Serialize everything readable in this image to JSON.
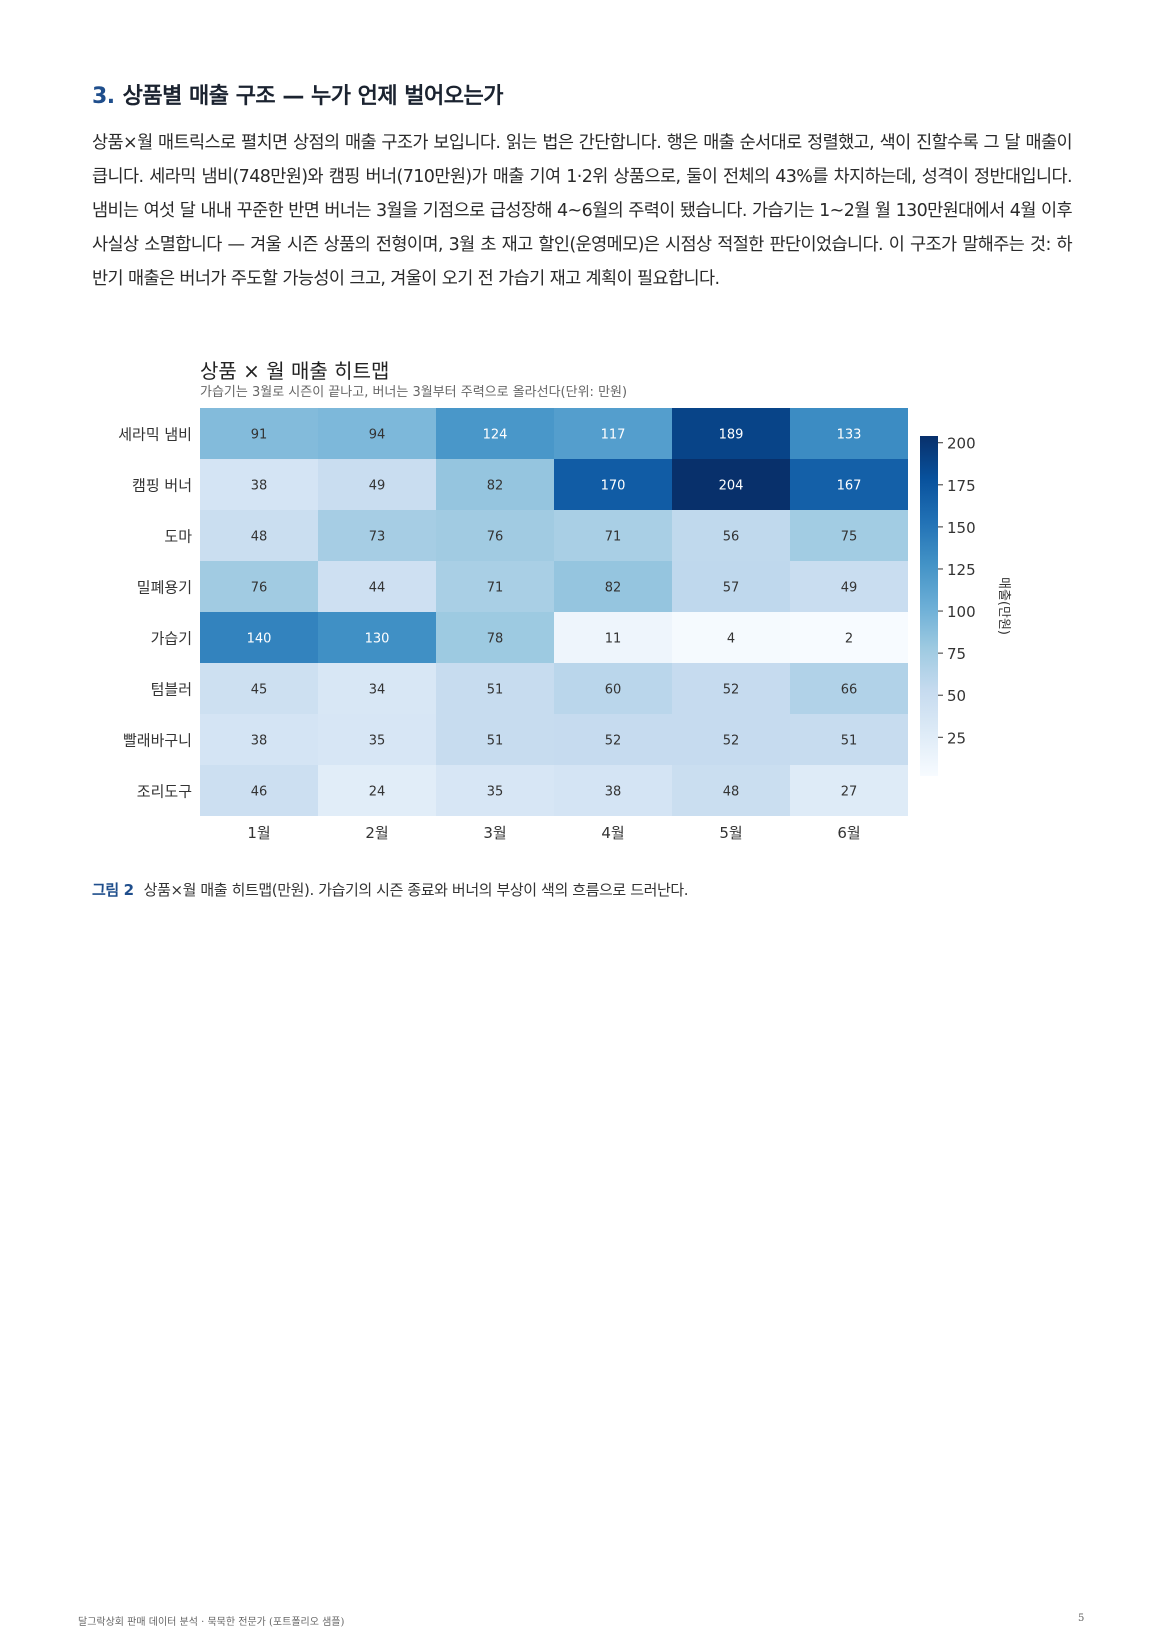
{
  "section": {
    "number": "3.",
    "title": "상품별 매출 구조 — 누가 언제 벌어오는가"
  },
  "body": {
    "paragraph": "상품×월 매트릭스로 펼치면 상점의 매출 구조가 보입니다. 읽는 법은 간단합니다. 행은 매출 순서대로 정렬했고, 색이 진할수록 그 달 매출이 큽니다. 세라믹 냄비(748만원)와 캠핑 버너(710만원)가 매출 기여 1·2위 상품으로, 둘이 전체의 43%를 차지하는데, 성격이 정반대입니다. 냄비는 여섯 달 내내 꾸준한 반면 버너는 3월을 기점으로 급성장해 4~6월의 주력이 됐습니다. 가습기는 1~2월 월 130만원대에서 4월 이후 사실상 소멸합니다 — 겨울 시즌 상품의 전형이며, 3월 초 재고 할인(운영메모)은 시점상 적절한 판단이었습니다. 이 구조가 말해주는 것: 하반기 매출은 버너가 주도할 가능성이 크고, 겨울이 오기 전 가습기 재고 계획이 필요합니다."
  },
  "chart_data": {
    "type": "heatmap",
    "title": "상품 × 월 매출 히트맵",
    "subtitle": "가습기는 3월로 시즌이 끝나고, 버너는 3월부터 주력으로 올라선다(단위: 만원)",
    "x_categories": [
      "1월",
      "2월",
      "3월",
      "4월",
      "5월",
      "6월"
    ],
    "y_categories": [
      "세라믹 냄비",
      "캠핑 버너",
      "도마",
      "밀폐용기",
      "가습기",
      "텀블러",
      "빨래바구니",
      "조리도구"
    ],
    "values": [
      [
        91,
        94,
        124,
        117,
        189,
        133
      ],
      [
        38,
        49,
        82,
        170,
        204,
        167
      ],
      [
        48,
        73,
        76,
        71,
        56,
        75
      ],
      [
        76,
        44,
        71,
        82,
        57,
        49
      ],
      [
        140,
        130,
        78,
        11,
        4,
        2
      ],
      [
        45,
        34,
        51,
        60,
        52,
        66
      ],
      [
        38,
        35,
        51,
        52,
        52,
        51
      ],
      [
        46,
        24,
        35,
        38,
        48,
        27
      ]
    ],
    "colorbar": {
      "label": "매출(만원)",
      "range": [
        2,
        204
      ],
      "ticks": [
        25,
        50,
        75,
        100,
        125,
        150,
        175,
        200
      ]
    },
    "colormap": [
      "#f7fbff",
      "#deebf7",
      "#c6dbef",
      "#9ecae1",
      "#6baed6",
      "#4292c6",
      "#2171b5",
      "#08519c",
      "#08306b"
    ]
  },
  "caption": {
    "label": "그림 2",
    "text": "상품×월 매출 히트맵(만원). 가습기의 시즌 종료와 버너의 부상이 색의 흐름으로 드러난다."
  },
  "footer": {
    "left": "달그락상회 판매 데이터 분석 · 묵묵한 전문가 (포트폴리오 샘플)",
    "page": "5"
  }
}
